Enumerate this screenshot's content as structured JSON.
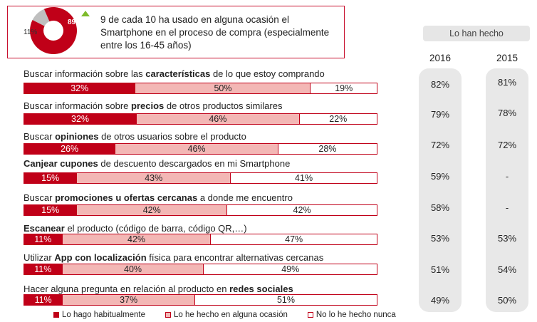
{
  "callout": {
    "text": "9 de cada 10 ha usado en alguna ocasión el Smartphone en el proceso de compra (especialmente entre los 16-45 años)",
    "donut_pct_label": "89%",
    "rest_pct_label": "11%"
  },
  "side_header": "Lo han hecho",
  "years": [
    "2016",
    "2015"
  ],
  "chart_data": {
    "type": "bar",
    "stacked": true,
    "orientation": "horizontal",
    "categories_parts": [
      [
        [
          "Buscar información sobre las ",
          false
        ],
        [
          "características",
          true
        ],
        [
          " de lo que estoy comprando",
          false
        ]
      ],
      [
        [
          "Buscar información sobre ",
          false
        ],
        [
          "precios",
          true
        ],
        [
          " de otros productos similares",
          false
        ]
      ],
      [
        [
          "Buscar ",
          false
        ],
        [
          "opiniones",
          true
        ],
        [
          " de otros usuarios sobre el producto",
          false
        ]
      ],
      [
        [
          "Canjear cupones",
          true
        ],
        [
          " de descuento descargados en mi Smartphone",
          false
        ]
      ],
      [
        [
          "Buscar ",
          false
        ],
        [
          "promociones u ofertas cercanas",
          true
        ],
        [
          " a donde me encuentro",
          false
        ]
      ],
      [
        [
          "Escanear",
          true
        ],
        [
          " el producto (código de barra, código QR,…)",
          false
        ]
      ],
      [
        [
          "Utilizar ",
          false
        ],
        [
          "App con localización",
          true
        ],
        [
          " física para encontrar alternativas cercanas",
          false
        ]
      ],
      [
        [
          "Hacer alguna pregunta en relación al producto en ",
          false
        ],
        [
          "redes sociales",
          true
        ]
      ]
    ],
    "series": [
      {
        "name": "Lo hago habitualmente",
        "values": [
          32,
          32,
          26,
          15,
          15,
          11,
          11,
          11
        ],
        "color": "#c00018"
      },
      {
        "name": "Lo he hecho en alguna ocasión",
        "values": [
          50,
          46,
          46,
          43,
          42,
          42,
          40,
          37
        ],
        "color": "#f3b7b5"
      },
      {
        "name": "No lo he hecho nunca",
        "values": [
          19,
          22,
          28,
          41,
          42,
          47,
          49,
          51
        ],
        "color": "#ffffff"
      }
    ],
    "lo_han_hecho_2016": [
      "82%",
      "79%",
      "72%",
      "59%",
      "58%",
      "53%",
      "51%",
      "49%"
    ],
    "lo_han_hecho_2015": [
      "81%",
      "78%",
      "72%",
      "-",
      "-",
      "53%",
      "54%",
      "50%"
    ]
  },
  "donut": {
    "primary": 89,
    "secondary": 11,
    "primary_color": "#c00018",
    "secondary_color": "#bfbfbf",
    "arrow_color": "#7dbb2a"
  }
}
